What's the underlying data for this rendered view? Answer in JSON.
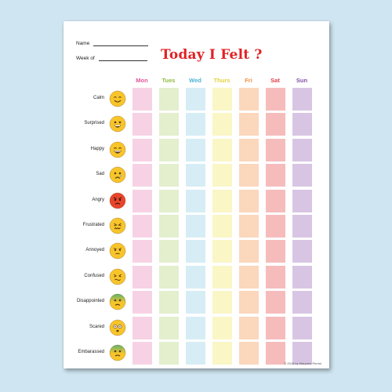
{
  "worksheet": {
    "name_label": "Name",
    "week_label": "Week of",
    "title": "Today I Felt ?",
    "copyright": "© 2016 by Maryann Perrini"
  },
  "days": [
    {
      "label": "Mon",
      "color": "#e8549a",
      "fill": "#f7d2e5"
    },
    {
      "label": "Tues",
      "color": "#8dbb3c",
      "fill": "#e3efcd"
    },
    {
      "label": "Wed",
      "color": "#4bb4d6",
      "fill": "#d6edf5"
    },
    {
      "label": "Thurs",
      "color": "#e0d33a",
      "fill": "#faf6c6"
    },
    {
      "label": "Fri",
      "color": "#f08f3c",
      "fill": "#fbd7bc"
    },
    {
      "label": "Sat",
      "color": "#e43e45",
      "fill": "#f6bcbc"
    },
    {
      "label": "Sun",
      "color": "#8050a8",
      "fill": "#d8c5e3"
    }
  ],
  "emotions": [
    {
      "label": "Calm",
      "icon": "calm-smiling-face-icon",
      "face": "#f7c52a",
      "mouth": "smile"
    },
    {
      "label": "Surprised",
      "icon": "surprised-grinning-face-icon",
      "face": "#f7c52a",
      "mouth": "grin"
    },
    {
      "label": "Happy",
      "icon": "happy-laughing-face-icon",
      "face": "#f7c52a",
      "mouth": "laugh"
    },
    {
      "label": "Sad",
      "icon": "sad-crying-face-icon",
      "face": "#f7c52a",
      "mouth": "sad"
    },
    {
      "label": "Angry",
      "icon": "angry-red-face-icon",
      "face": "#e8452c",
      "mouth": "angry"
    },
    {
      "label": "Frustrated",
      "icon": "frustrated-face-icon",
      "face": "#f7c52a",
      "mouth": "frustrated"
    },
    {
      "label": "Annoyed",
      "icon": "annoyed-face-icon",
      "face": "#f7c52a",
      "mouth": "annoyed"
    },
    {
      "label": "Confused",
      "icon": "confused-face-icon",
      "face": "#f7c52a",
      "mouth": "confused"
    },
    {
      "label": "Disappointed",
      "icon": "disappointed-face-icon",
      "face": "#f7c52a",
      "mouth": "disappointed",
      "tint": "#5db36f"
    },
    {
      "label": "Scared",
      "icon": "scared-face-icon",
      "face": "#f7c52a",
      "mouth": "scared"
    },
    {
      "label": "Embarassed",
      "icon": "embarrassed-face-icon",
      "face": "#f7c52a",
      "mouth": "embarrassed",
      "tint": "#5db36f"
    }
  ]
}
